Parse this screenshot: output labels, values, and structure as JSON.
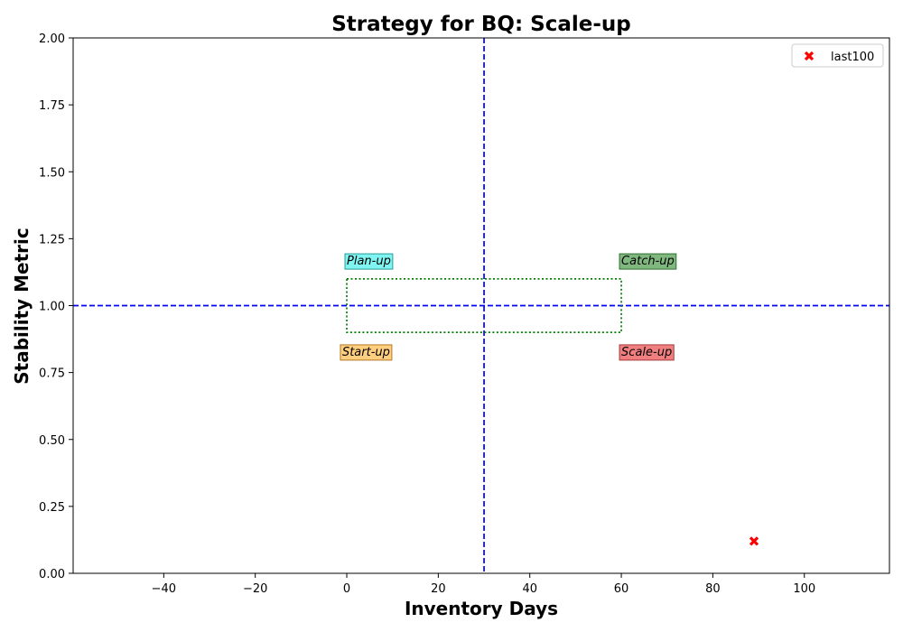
{
  "chart_data": {
    "type": "scatter",
    "title": "Strategy for BQ: Scale-up",
    "xlabel": "Inventory Days",
    "ylabel": "Stability Metric",
    "xlim": [
      -59.8,
      118.6
    ],
    "ylim": [
      0,
      2
    ],
    "x_ticks": [
      {
        "value": -40,
        "label": "−40"
      },
      {
        "value": -20,
        "label": "−20"
      },
      {
        "value": 0,
        "label": "0"
      },
      {
        "value": 20,
        "label": "20"
      },
      {
        "value": 40,
        "label": "40"
      },
      {
        "value": 60,
        "label": "60"
      },
      {
        "value": 80,
        "label": "80"
      },
      {
        "value": 100,
        "label": "100"
      }
    ],
    "y_ticks": [
      {
        "value": 0,
        "label": "0.00"
      },
      {
        "value": 0.25,
        "label": "0.25"
      },
      {
        "value": 0.5,
        "label": "0.50"
      },
      {
        "value": 0.75,
        "label": "0.75"
      },
      {
        "value": 1.0,
        "label": "1.00"
      },
      {
        "value": 1.25,
        "label": "1.25"
      },
      {
        "value": 1.5,
        "label": "1.50"
      },
      {
        "value": 1.75,
        "label": "1.75"
      },
      {
        "value": 2.0,
        "label": "2.00"
      }
    ],
    "grid": false,
    "reference_lines": {
      "vertical_x": 30,
      "horizontal_y": 1.0,
      "color": "#0000ff",
      "style": "dashed"
    },
    "target_box": {
      "x0": 0,
      "x1": 60,
      "y0": 0.9,
      "y1": 1.1,
      "color": "#008000",
      "style": "dotted"
    },
    "quadrant_labels": [
      {
        "text": "Plan-up",
        "x": 0,
        "y": 1.17,
        "bg": "#7ff5f2",
        "border": "#2a9a98"
      },
      {
        "text": "Catch-up",
        "x": 60,
        "y": 1.17,
        "bg": "#7fb77f",
        "border": "#2f6f2f"
      },
      {
        "text": "Start-up",
        "x": -1,
        "y": 0.83,
        "bg": "#ffce7f",
        "border": "#b07a2a"
      },
      {
        "text": "Scale-up",
        "x": 60,
        "y": 0.83,
        "bg": "#f27f7f",
        "border": "#a33a3a"
      }
    ],
    "series": [
      {
        "name": "last100",
        "marker": "x",
        "color": "#ff0000",
        "points": [
          {
            "x": 89,
            "y": 0.12
          }
        ]
      }
    ],
    "legend": {
      "placement": "top-right"
    }
  }
}
